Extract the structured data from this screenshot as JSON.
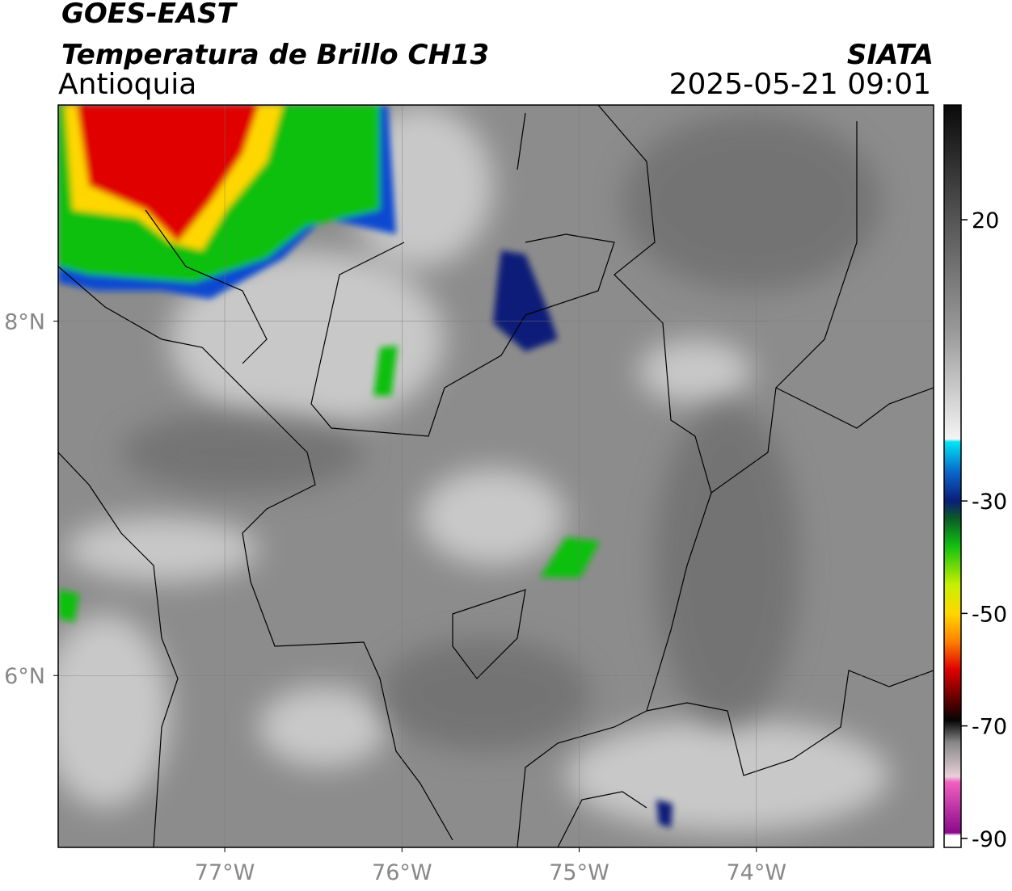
{
  "header": {
    "title": "GOES-EAST",
    "subtitle": "Temperatura de Brillo CH13",
    "region": "Antioquia",
    "source": "SIATA",
    "datetime": "2025-05-21 09:01"
  },
  "map": {
    "xlim": [
      -77.94,
      -73.0
    ],
    "ylim": [
      5.03,
      9.22
    ],
    "grid": true,
    "xticks": [
      {
        "value": -77,
        "label": "77°W"
      },
      {
        "value": -76,
        "label": "76°W"
      },
      {
        "value": -75,
        "label": "75°W"
      },
      {
        "value": -74,
        "label": "74°W"
      }
    ],
    "yticks": [
      {
        "value": 8,
        "label": "8°N"
      },
      {
        "value": 6,
        "label": "6°N"
      }
    ]
  },
  "colorbar": {
    "lim": [
      -91.6,
      40.4
    ],
    "ticks": [
      20,
      -30,
      -50,
      -70,
      -90
    ],
    "stops": [
      [
        40.4,
        "#0a0a0a"
      ],
      [
        20,
        "#555555"
      ],
      [
        0,
        "#9a9a9a"
      ],
      [
        -19,
        "#f4f4f4"
      ],
      [
        -19.5,
        "#00e5f5"
      ],
      [
        -25,
        "#0a64c8"
      ],
      [
        -30,
        "#0a1e78"
      ],
      [
        -33,
        "#0a5a28"
      ],
      [
        -38,
        "#11c011"
      ],
      [
        -45,
        "#c8f000"
      ],
      [
        -50,
        "#ffd700"
      ],
      [
        -55,
        "#ff8000"
      ],
      [
        -60,
        "#e00000"
      ],
      [
        -66,
        "#500000"
      ],
      [
        -69,
        "#050505"
      ],
      [
        -73,
        "#888888"
      ],
      [
        -79,
        "#e8d0d8"
      ],
      [
        -80,
        "#f060c0"
      ],
      [
        -89,
        "#8a0a8a"
      ],
      [
        -89.5,
        "#ffffff"
      ]
    ]
  }
}
